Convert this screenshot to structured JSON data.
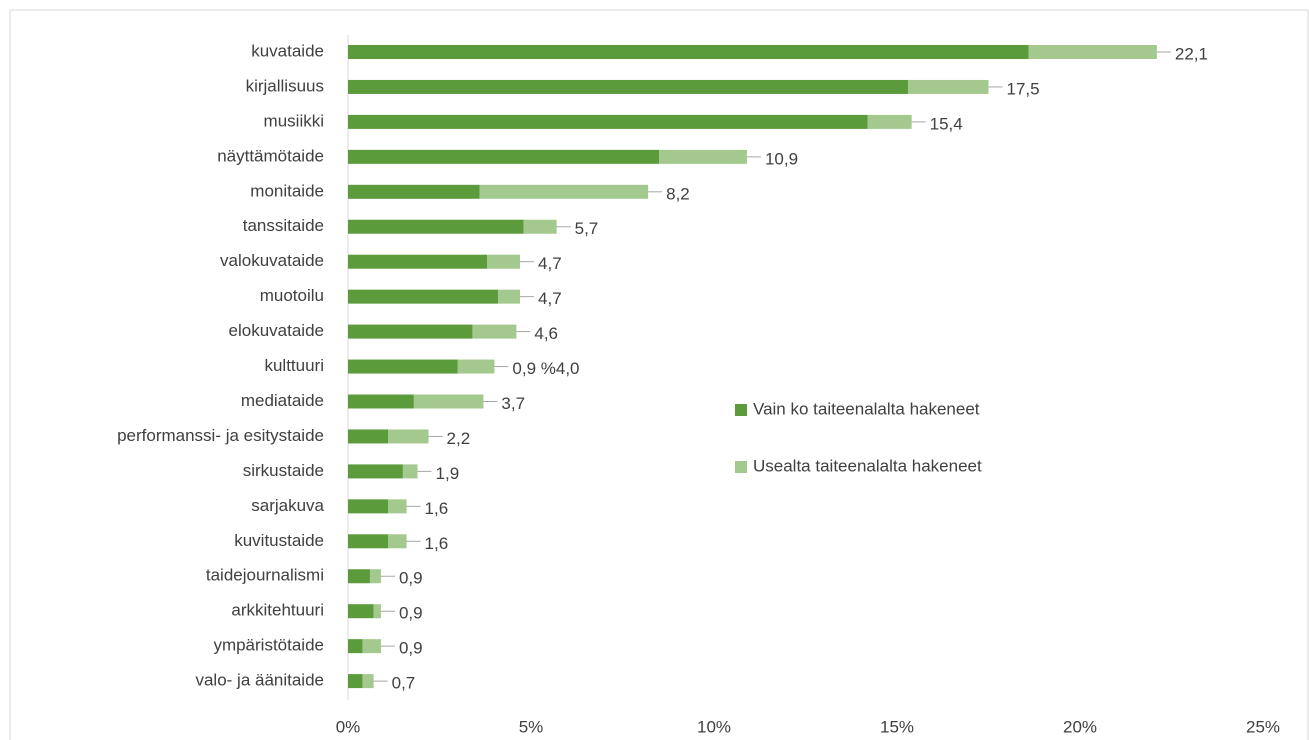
{
  "chart_data": {
    "type": "stacked-bar-horizontal",
    "categories": [
      "kuvataide",
      "kirjallisuus",
      "musiikki",
      "näyttämötaide",
      "monitaide",
      "tanssitaide",
      "valokuvataide",
      "muotoilu",
      "elokuvataide",
      "kulttuuri",
      "mediataide",
      "performanssi- ja esitystaide",
      "sirkustaide",
      "sarjakuva",
      "kuvitustaide",
      "taidejournalismi",
      "arkkitehtuuri",
      "ympäristötaide",
      "valo- ja äänitaide"
    ],
    "series": [
      {
        "name": "Vain ko taiteenalalta hakeneet",
        "color": "#5b9b3c",
        "values": [
          18.6,
          15.3,
          14.2,
          8.5,
          3.6,
          4.8,
          3.8,
          4.1,
          3.4,
          3.0,
          1.8,
          1.1,
          1.5,
          1.1,
          1.1,
          0.6,
          0.7,
          0.4,
          0.4
        ]
      },
      {
        "name": "Usealta taiteenalalta hakeneet",
        "color": "#a3c98e",
        "values": [
          3.5,
          2.2,
          1.2,
          2.4,
          4.6,
          0.9,
          0.9,
          0.6,
          1.2,
          1.0,
          1.9,
          1.1,
          0.4,
          0.5,
          0.5,
          0.3,
          0.2,
          0.5,
          0.3
        ]
      }
    ],
    "value_labels": [
      "22,1",
      "17,5",
      "15,4",
      "10,9",
      "8,2",
      "5,7",
      "4,7",
      "4,7",
      "4,6",
      "0,9 %4,0",
      "3,7",
      "2,2",
      "1,9",
      "1,6",
      "1,6",
      "0,9",
      "0,9",
      "0,9",
      "0,7"
    ],
    "xlim": [
      0,
      25
    ],
    "xticks": [
      {
        "value": 0,
        "label": "0%"
      },
      {
        "value": 5,
        "label": "5%"
      },
      {
        "value": 10,
        "label": "10%"
      },
      {
        "value": 15,
        "label": "15%"
      },
      {
        "value": 20,
        "label": "20%"
      },
      {
        "value": 25,
        "label": "25%"
      }
    ],
    "legend": "right"
  }
}
